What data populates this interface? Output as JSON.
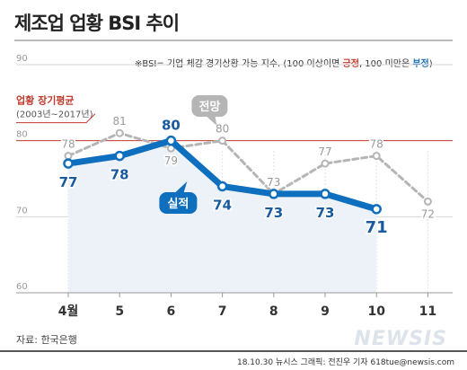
{
  "title": "제조업 업황 BSI 추이",
  "source": "자료: 한국은행",
  "credit": "18.10.30 뉴시스 그래픽: 전진우 기자 618tue@newsis.com",
  "watermark": "NEWSIS",
  "note": {
    "prefix": "※BSI= 기업 체감 경기상황 가능 지수. (100 이상이면 ",
    "positive": "긍정",
    "middle": ", 100 미만은 ",
    "negative": "부정",
    "suffix": ")"
  },
  "colors": {
    "actual": "#0f6fbf",
    "outlook": "#b5b5b5",
    "reference": "#c0392b",
    "actual_label": "#1a5a9e",
    "outlook_label": "#9a9a9a"
  },
  "chart_data": {
    "type": "line",
    "categories": [
      "4월",
      "5",
      "6",
      "7",
      "8",
      "9",
      "10",
      "11"
    ],
    "ylim": [
      60,
      90
    ],
    "yticks": [
      60,
      70,
      80,
      90
    ],
    "grid": true,
    "series": [
      {
        "name": "전망",
        "values": [
          78,
          81,
          79,
          80,
          73,
          77,
          78,
          72
        ]
      },
      {
        "name": "실적",
        "values": [
          77,
          78,
          80,
          74,
          73,
          73,
          71,
          null
        ]
      }
    ],
    "reference_line": {
      "label": "업황 장기평균",
      "sublabel": "(2003년~2017년)",
      "value": 80
    }
  }
}
